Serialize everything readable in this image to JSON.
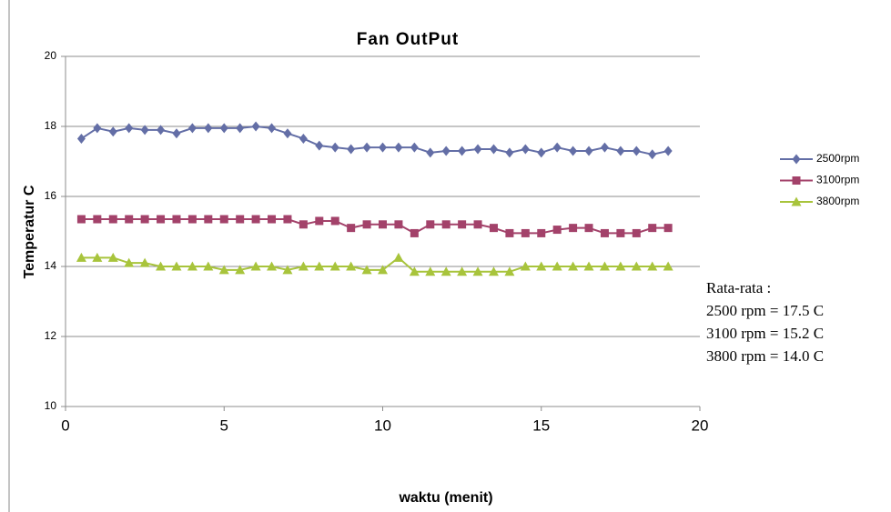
{
  "chart_data": {
    "type": "line",
    "title": "Fan OutPut",
    "xlabel": "waktu (menit)",
    "ylabel": "Temperatur C",
    "x": [
      0.5,
      1,
      1.5,
      2,
      2.5,
      3,
      3.5,
      4,
      4.5,
      5,
      5.5,
      6,
      6.5,
      7,
      7.5,
      8,
      8.5,
      9,
      9.5,
      10,
      10.5,
      11,
      11.5,
      12,
      12.5,
      13,
      13.5,
      14,
      14.5,
      15,
      15.5,
      16,
      16.5,
      17,
      17.5,
      18,
      18.5,
      19
    ],
    "series": [
      {
        "name": "2500rpm",
        "color": "#636ea6",
        "marker": "diamond",
        "values": [
          17.65,
          17.95,
          17.85,
          17.95,
          17.9,
          17.9,
          17.8,
          17.95,
          17.95,
          17.95,
          17.95,
          18.0,
          17.95,
          17.8,
          17.65,
          17.45,
          17.4,
          17.35,
          17.4,
          17.4,
          17.4,
          17.4,
          17.25,
          17.3,
          17.3,
          17.35,
          17.35,
          17.25,
          17.35,
          17.25,
          17.4,
          17.3,
          17.3,
          17.4,
          17.3,
          17.3,
          17.2,
          17.3
        ]
      },
      {
        "name": "3100rpm",
        "color": "#a3426a",
        "marker": "square",
        "values": [
          15.35,
          15.35,
          15.35,
          15.35,
          15.35,
          15.35,
          15.35,
          15.35,
          15.35,
          15.35,
          15.35,
          15.35,
          15.35,
          15.35,
          15.2,
          15.3,
          15.3,
          15.1,
          15.2,
          15.2,
          15.2,
          14.95,
          15.2,
          15.2,
          15.2,
          15.2,
          15.1,
          14.95,
          14.95,
          14.95,
          15.05,
          15.1,
          15.1,
          14.95,
          14.95,
          14.95,
          15.1,
          15.1
        ]
      },
      {
        "name": "3800rpm",
        "color": "#a8c43c",
        "marker": "triangle",
        "values": [
          14.25,
          14.25,
          14.25,
          14.1,
          14.1,
          14.0,
          14.0,
          14.0,
          14.0,
          13.9,
          13.9,
          14.0,
          14.0,
          13.9,
          14.0,
          14.0,
          14.0,
          14.0,
          13.9,
          13.9,
          14.25,
          13.85,
          13.85,
          13.85,
          13.85,
          13.85,
          13.85,
          13.85,
          14.0,
          14.0,
          14.0,
          14.0,
          14.0,
          14.0,
          14.0,
          14.0,
          14.0,
          14.0
        ]
      }
    ],
    "xlim": [
      0,
      20
    ],
    "xticks": [
      0,
      5,
      10,
      15,
      20
    ],
    "ylim": [
      10,
      20
    ],
    "yticks": [
      10,
      12,
      14,
      16,
      18,
      20
    ],
    "grid": true,
    "legend": "right",
    "annotations": [
      "Rata-rata :",
      "2500 rpm = 17.5 C",
      "3100 rpm = 15.2 C",
      "3800 rpm = 14.0 C"
    ]
  }
}
